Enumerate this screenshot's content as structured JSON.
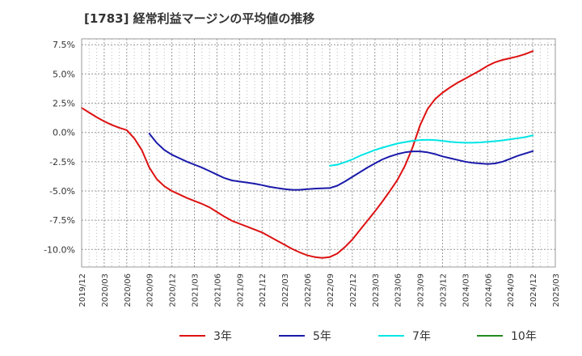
{
  "chart_data": {
    "type": "line",
    "title": "[1783]  経常利益マージンの平均値の推移",
    "xlabel": "",
    "ylabel": "",
    "x_start": "2019/12",
    "x_end": "2025/03",
    "xticks": [
      "2019/12",
      "2020/03",
      "2020/06",
      "2020/09",
      "2020/12",
      "2021/03",
      "2021/06",
      "2021/09",
      "2021/12",
      "2022/03",
      "2022/06",
      "2022/09",
      "2022/12",
      "2023/03",
      "2023/06",
      "2023/09",
      "2023/12",
      "2024/03",
      "2024/06",
      "2024/09",
      "2024/12",
      "2025/03"
    ],
    "yticks": [
      7.5,
      5.0,
      2.5,
      0.0,
      -2.5,
      -5.0,
      -7.5,
      -10.0
    ],
    "ytick_labels": [
      "7.5%",
      "5.0%",
      "2.5%",
      "0.0%",
      "-2.5%",
      "-5.0%",
      "-7.5%",
      "-10.0%"
    ],
    "ylim": [
      -11.5,
      8.0
    ],
    "grid": true,
    "legend_position": "bottom",
    "series": [
      {
        "name": "3年",
        "color": "#dd1111",
        "x": [
          "2019/12",
          "2020/01",
          "2020/02",
          "2020/03",
          "2020/04",
          "2020/05",
          "2020/06",
          "2020/07",
          "2020/08",
          "2020/09",
          "2020/10",
          "2020/11",
          "2020/12",
          "2021/01",
          "2021/02",
          "2021/03",
          "2021/04",
          "2021/05",
          "2021/06",
          "2021/07",
          "2021/08",
          "2021/09",
          "2021/10",
          "2021/11",
          "2021/12",
          "2022/01",
          "2022/02",
          "2022/03",
          "2022/04",
          "2022/05",
          "2022/06",
          "2022/07",
          "2022/08",
          "2022/09",
          "2022/10",
          "2022/11",
          "2022/12",
          "2023/01",
          "2023/02",
          "2023/03",
          "2023/04",
          "2023/05",
          "2023/06",
          "2023/07",
          "2023/08",
          "2023/09",
          "2023/10",
          "2023/11",
          "2023/12",
          "2024/01",
          "2024/02",
          "2024/03",
          "2024/04",
          "2024/05",
          "2024/06",
          "2024/07",
          "2024/08",
          "2024/09",
          "2024/10",
          "2024/11",
          "2024/12"
        ],
        "values": [
          2.1,
          1.7,
          1.3,
          0.95,
          0.65,
          0.4,
          0.2,
          -0.5,
          -1.5,
          -3.0,
          -4.0,
          -4.6,
          -5.0,
          -5.3,
          -5.6,
          -5.85,
          -6.1,
          -6.4,
          -6.8,
          -7.2,
          -7.55,
          -7.8,
          -8.05,
          -8.3,
          -8.55,
          -8.9,
          -9.25,
          -9.6,
          -9.95,
          -10.25,
          -10.5,
          -10.65,
          -10.72,
          -10.65,
          -10.35,
          -9.8,
          -9.15,
          -8.35,
          -7.55,
          -6.75,
          -5.9,
          -5.0,
          -4.05,
          -2.85,
          -1.3,
          0.6,
          2.0,
          2.85,
          3.4,
          3.85,
          4.25,
          4.6,
          4.95,
          5.3,
          5.7,
          6.0,
          6.2,
          6.35,
          6.5,
          6.7,
          6.95
        ]
      },
      {
        "name": "5年",
        "color": "#1a1aaa",
        "x": [
          "2020/09",
          "2020/10",
          "2020/11",
          "2020/12",
          "2021/01",
          "2021/02",
          "2021/03",
          "2021/04",
          "2021/05",
          "2021/06",
          "2021/07",
          "2021/08",
          "2021/09",
          "2021/10",
          "2021/11",
          "2021/12",
          "2022/01",
          "2022/02",
          "2022/03",
          "2022/04",
          "2022/05",
          "2022/06",
          "2022/07",
          "2022/08",
          "2022/09",
          "2022/10",
          "2022/11",
          "2022/12",
          "2023/01",
          "2023/02",
          "2023/03",
          "2023/04",
          "2023/05",
          "2023/06",
          "2023/07",
          "2023/08",
          "2023/09",
          "2023/10",
          "2023/11",
          "2023/12",
          "2024/01",
          "2024/02",
          "2024/03",
          "2024/04",
          "2024/05",
          "2024/06",
          "2024/07",
          "2024/08",
          "2024/09",
          "2024/10",
          "2024/11",
          "2024/12"
        ],
        "values": [
          -0.1,
          -0.9,
          -1.5,
          -1.9,
          -2.2,
          -2.5,
          -2.75,
          -3.0,
          -3.3,
          -3.6,
          -3.9,
          -4.1,
          -4.2,
          -4.28,
          -4.38,
          -4.5,
          -4.65,
          -4.75,
          -4.85,
          -4.9,
          -4.9,
          -4.85,
          -4.8,
          -4.78,
          -4.75,
          -4.55,
          -4.2,
          -3.8,
          -3.4,
          -3.0,
          -2.65,
          -2.3,
          -2.05,
          -1.85,
          -1.7,
          -1.62,
          -1.62,
          -1.7,
          -1.85,
          -2.05,
          -2.2,
          -2.35,
          -2.5,
          -2.6,
          -2.65,
          -2.7,
          -2.65,
          -2.5,
          -2.25,
          -2.0,
          -1.8,
          -1.6
        ]
      },
      {
        "name": "7年",
        "color": "#00e5e5",
        "x": [
          "2022/09",
          "2022/10",
          "2022/11",
          "2022/12",
          "2023/01",
          "2023/02",
          "2023/03",
          "2023/04",
          "2023/05",
          "2023/06",
          "2023/07",
          "2023/08",
          "2023/09",
          "2023/10",
          "2023/11",
          "2023/12",
          "2024/01",
          "2024/02",
          "2024/03",
          "2024/04",
          "2024/05",
          "2024/06",
          "2024/07",
          "2024/08",
          "2024/09",
          "2024/10",
          "2024/11",
          "2024/12"
        ],
        "values": [
          -2.85,
          -2.75,
          -2.55,
          -2.3,
          -2.0,
          -1.75,
          -1.5,
          -1.3,
          -1.12,
          -0.95,
          -0.82,
          -0.72,
          -0.65,
          -0.63,
          -0.65,
          -0.72,
          -0.8,
          -0.85,
          -0.88,
          -0.88,
          -0.85,
          -0.8,
          -0.75,
          -0.68,
          -0.58,
          -0.5,
          -0.4,
          -0.25
        ]
      },
      {
        "name": "10年",
        "color": "#228b22",
        "x": [],
        "values": []
      }
    ]
  }
}
